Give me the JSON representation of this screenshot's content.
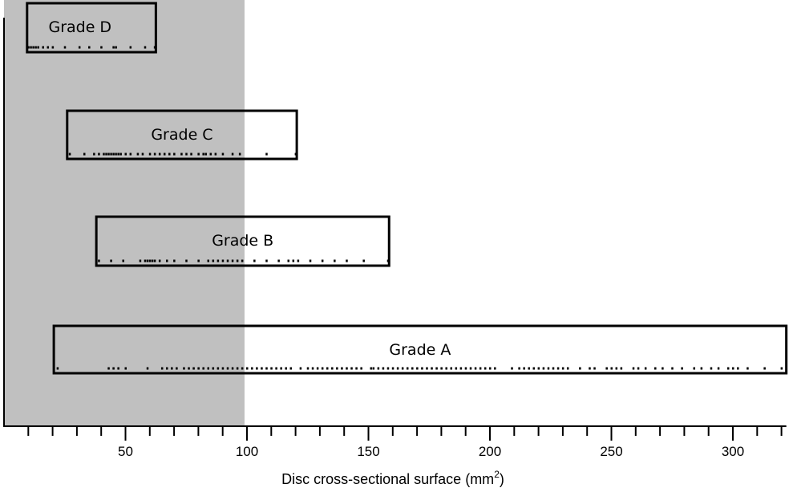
{
  "chart_data": {
    "type": "range-strip",
    "xlabel": "Disc cross-sectional surface (mm",
    "xlabel_superscript": "2",
    "xlabel_suffix": ")",
    "xlim": [
      0,
      322
    ],
    "x_ticks_major": [
      50,
      100,
      150,
      200,
      250,
      300
    ],
    "x_minor_step": 10,
    "shaded_region": {
      "x": [
        0,
        99
      ],
      "color": "#c0c0c0"
    },
    "grades": [
      {
        "name": "Grade D",
        "range": [
          9.5,
          62.5
        ],
        "points": [
          10,
          11,
          12,
          13,
          14,
          16,
          18,
          20,
          25,
          31,
          35,
          40,
          45,
          46,
          52,
          58,
          62
        ]
      },
      {
        "name": "Grade C",
        "range": [
          26,
          120.5
        ],
        "points": [
          27,
          33,
          37,
          39,
          41,
          42,
          43,
          44,
          45,
          46,
          47,
          48,
          50,
          52,
          55,
          57,
          60,
          62,
          64,
          66,
          68,
          70,
          73,
          75,
          77,
          80,
          82,
          83,
          85,
          87,
          90,
          94,
          97,
          108,
          120
        ]
      },
      {
        "name": "Grade B",
        "range": [
          38,
          158.5
        ],
        "points": [
          39,
          44,
          49,
          56,
          58,
          59,
          60,
          61,
          62,
          64,
          67,
          70,
          75,
          80,
          84,
          86,
          88,
          90,
          92,
          94,
          96,
          98,
          103,
          108,
          113,
          117,
          119,
          121,
          126,
          131,
          136,
          141,
          148,
          158
        ]
      },
      {
        "name": "Grade A",
        "range": [
          20.5,
          322
        ],
        "points": [
          22,
          43,
          45,
          47,
          50,
          59,
          65,
          67,
          69,
          71,
          74,
          76,
          78,
          80,
          82,
          84,
          86,
          88,
          90,
          92,
          94,
          96,
          98,
          100,
          102,
          104,
          106,
          108,
          110,
          112,
          114,
          116,
          118,
          122,
          125,
          127,
          129,
          131,
          133,
          135,
          137,
          139,
          141,
          143,
          145,
          147,
          151,
          152,
          154,
          156,
          158,
          160,
          162,
          164,
          166,
          168,
          170,
          172,
          174,
          176,
          178,
          180,
          182,
          184,
          186,
          188,
          190,
          192,
          194,
          196,
          198,
          200,
          202,
          209,
          212,
          214,
          216,
          218,
          220,
          222,
          224,
          226,
          228,
          230,
          232,
          237,
          241,
          243,
          248,
          250,
          252,
          254,
          259,
          261,
          264,
          268,
          271,
          275,
          279,
          284,
          287,
          291,
          294,
          298,
          300,
          302,
          306,
          313,
          320
        ]
      }
    ]
  }
}
